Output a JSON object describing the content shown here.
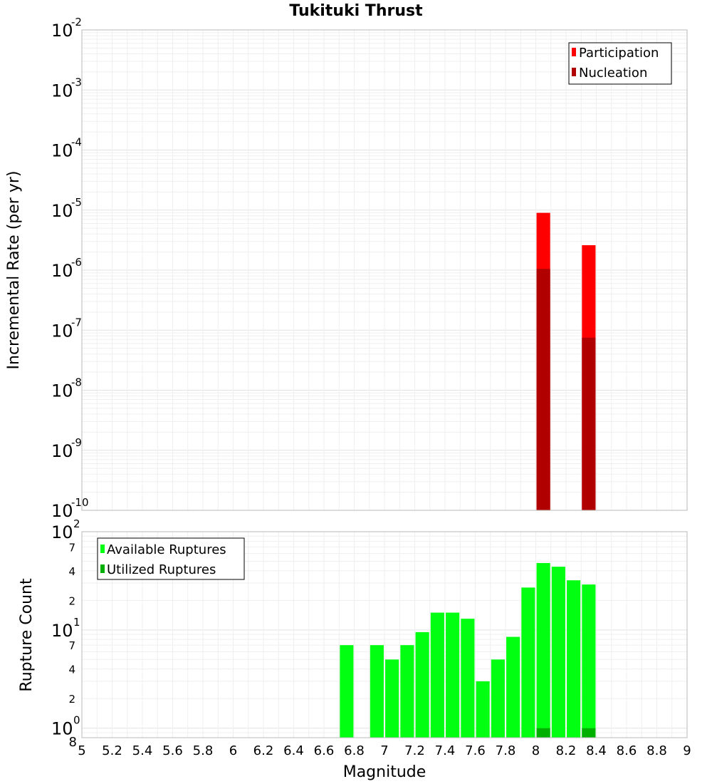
{
  "chart_data": [
    {
      "type": "bar",
      "title": "Tukituki Thrust",
      "xlabel": "",
      "ylabel": "Incremental Rate (per yr)",
      "yscale": "log",
      "xlim": [
        5,
        9
      ],
      "ylim": [
        1e-10,
        0.01
      ],
      "grid": true,
      "legend": "top-right",
      "y_ticks": [
        {
          "base": "10",
          "exp": "-10",
          "value": 1e-10
        },
        {
          "base": "10",
          "exp": "-9",
          "value": 1e-09
        },
        {
          "base": "10",
          "exp": "-8",
          "value": 1e-08
        },
        {
          "base": "10",
          "exp": "-7",
          "value": 1e-07
        },
        {
          "base": "10",
          "exp": "-6",
          "value": 1e-06
        },
        {
          "base": "10",
          "exp": "-5",
          "value": 1e-05
        },
        {
          "base": "10",
          "exp": "-4",
          "value": 0.0001
        },
        {
          "base": "10",
          "exp": "-3",
          "value": 0.001
        },
        {
          "base": "10",
          "exp": "-2",
          "value": 0.01
        }
      ],
      "series": [
        {
          "name": "Participation",
          "color": "#ff0000",
          "x": [
            8.05,
            8.35
          ],
          "values": [
            9e-06,
            2.6e-06
          ]
        },
        {
          "name": "Nucleation",
          "color": "#b00000",
          "x": [
            8.05,
            8.35
          ],
          "values": [
            1.05e-06,
            7.5e-08
          ]
        }
      ]
    },
    {
      "type": "bar",
      "title": "",
      "xlabel": "Magnitude",
      "ylabel": "Rupture Count",
      "yscale": "log",
      "xlim": [
        5,
        9
      ],
      "ylim": [
        0.8,
        100
      ],
      "grid": true,
      "legend": "top-left",
      "x_ticks": [
        "5",
        "5.2",
        "5.4",
        "5.6",
        "5.8",
        "6",
        "6.2",
        "6.4",
        "6.6",
        "6.8",
        "7",
        "7.2",
        "7.4",
        "7.6",
        "7.8",
        "8",
        "8.2",
        "8.4",
        "8.6",
        "8.8",
        "9"
      ],
      "y_major_ticks": [
        {
          "base": "10",
          "exp": "0",
          "value": 1
        },
        {
          "base": "10",
          "exp": "1",
          "value": 10
        },
        {
          "base": "10",
          "exp": "2",
          "value": 100
        }
      ],
      "y_minor_ticks": [
        {
          "label": "8",
          "value": 0.8
        },
        {
          "label": "2",
          "value": 2
        },
        {
          "label": "4",
          "value": 4
        },
        {
          "label": "7",
          "value": 7
        },
        {
          "label": "2",
          "value": 20
        },
        {
          "label": "4",
          "value": 40
        },
        {
          "label": "7",
          "value": 70
        }
      ],
      "series": [
        {
          "name": "Available Ruptures",
          "color": "#00ff11",
          "x": [
            6.75,
            6.95,
            7.05,
            7.15,
            7.25,
            7.35,
            7.45,
            7.55,
            7.65,
            7.75,
            7.85,
            7.95,
            8.05,
            8.15,
            8.25,
            8.35
          ],
          "values": [
            7,
            7,
            5,
            7,
            9.5,
            15,
            15,
            13,
            3,
            5,
            8.5,
            27,
            48,
            44,
            32,
            29
          ]
        },
        {
          "name": "Utilized Ruptures",
          "color": "#00b000",
          "x": [
            8.05,
            8.35
          ],
          "values": [
            1,
            1
          ]
        }
      ]
    }
  ]
}
